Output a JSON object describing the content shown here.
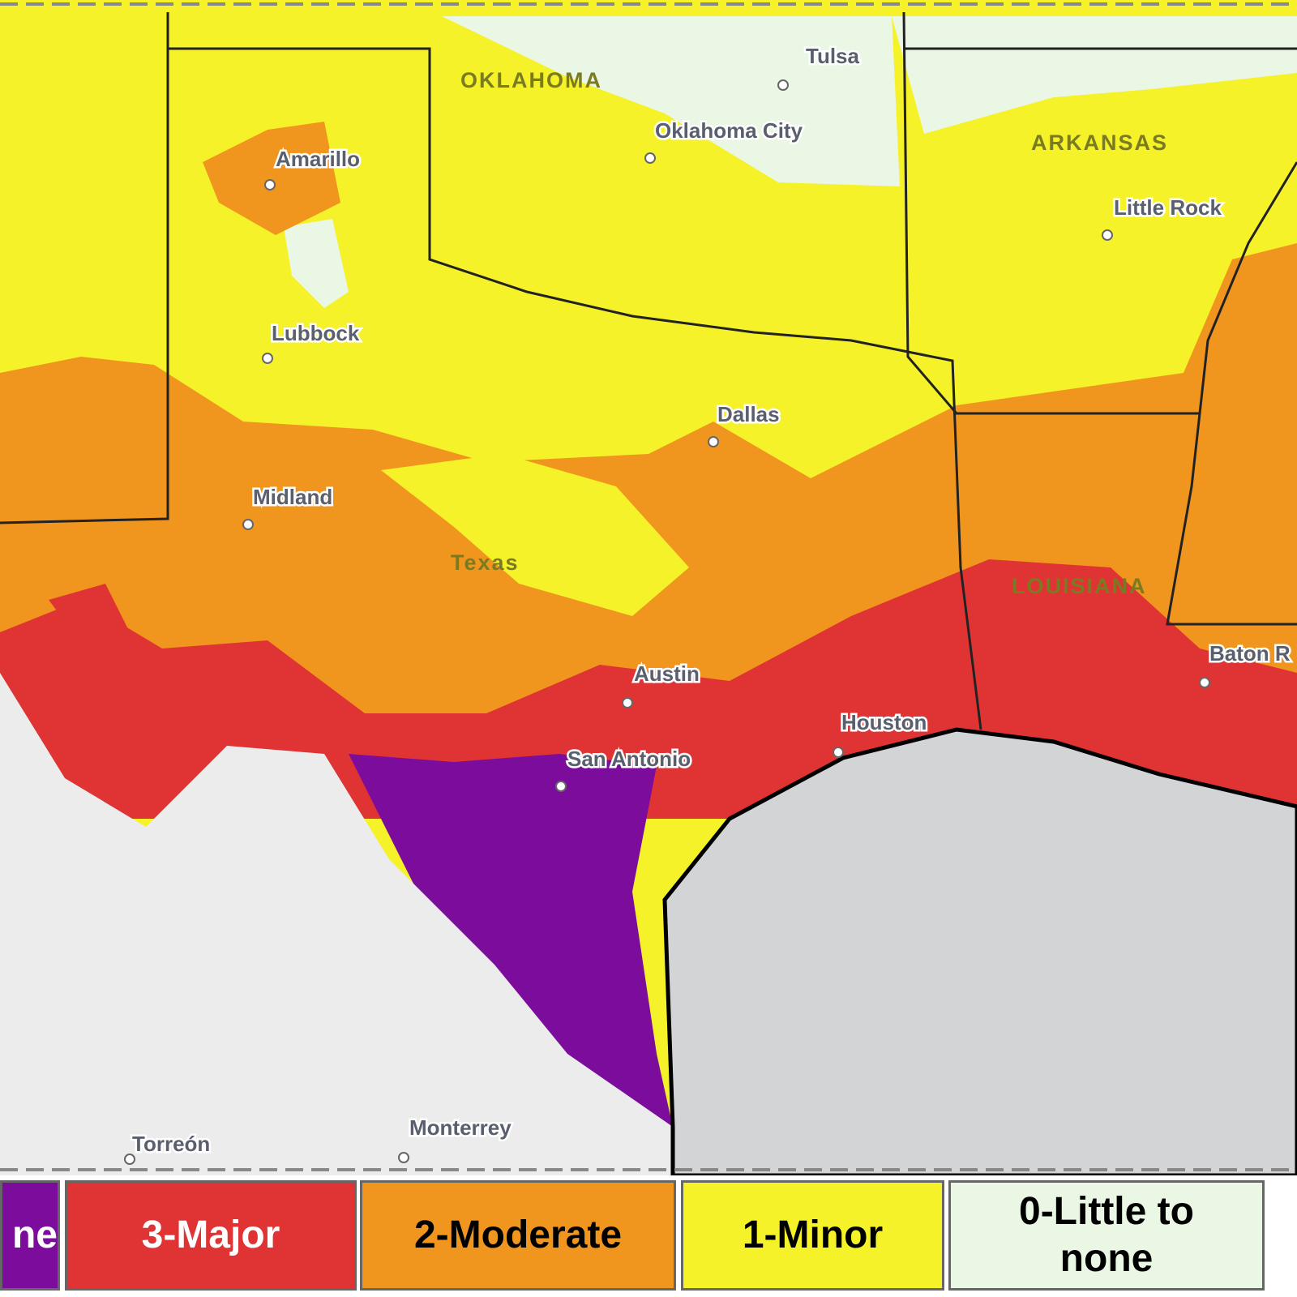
{
  "map": {
    "states": [
      "OKLAHOMA",
      "ARKANSAS",
      "Texas",
      "LOUISIANA"
    ],
    "cities": [
      "Tulsa",
      "Oklahoma City",
      "Amarillo",
      "Little Rock",
      "Lubbock",
      "Dallas",
      "Midland",
      "Austin",
      "Houston",
      "San Antonio",
      "Baton R",
      "Monterrey",
      "Torreón"
    ]
  },
  "legend": [
    {
      "label": "ne",
      "color": "#7b0c9c",
      "text_color": "#ffffff"
    },
    {
      "label": "3-Major",
      "color": "#e03434",
      "text_color": "#ffffff"
    },
    {
      "label": "2-Moderate",
      "color": "#f0961e",
      "text_color": "#000000"
    },
    {
      "label": "1-Minor",
      "color": "#f5f22a",
      "text_color": "#000000"
    },
    {
      "label": "0-Little to none",
      "color": "#eaf7e4",
      "text_color": "#000000"
    }
  ]
}
